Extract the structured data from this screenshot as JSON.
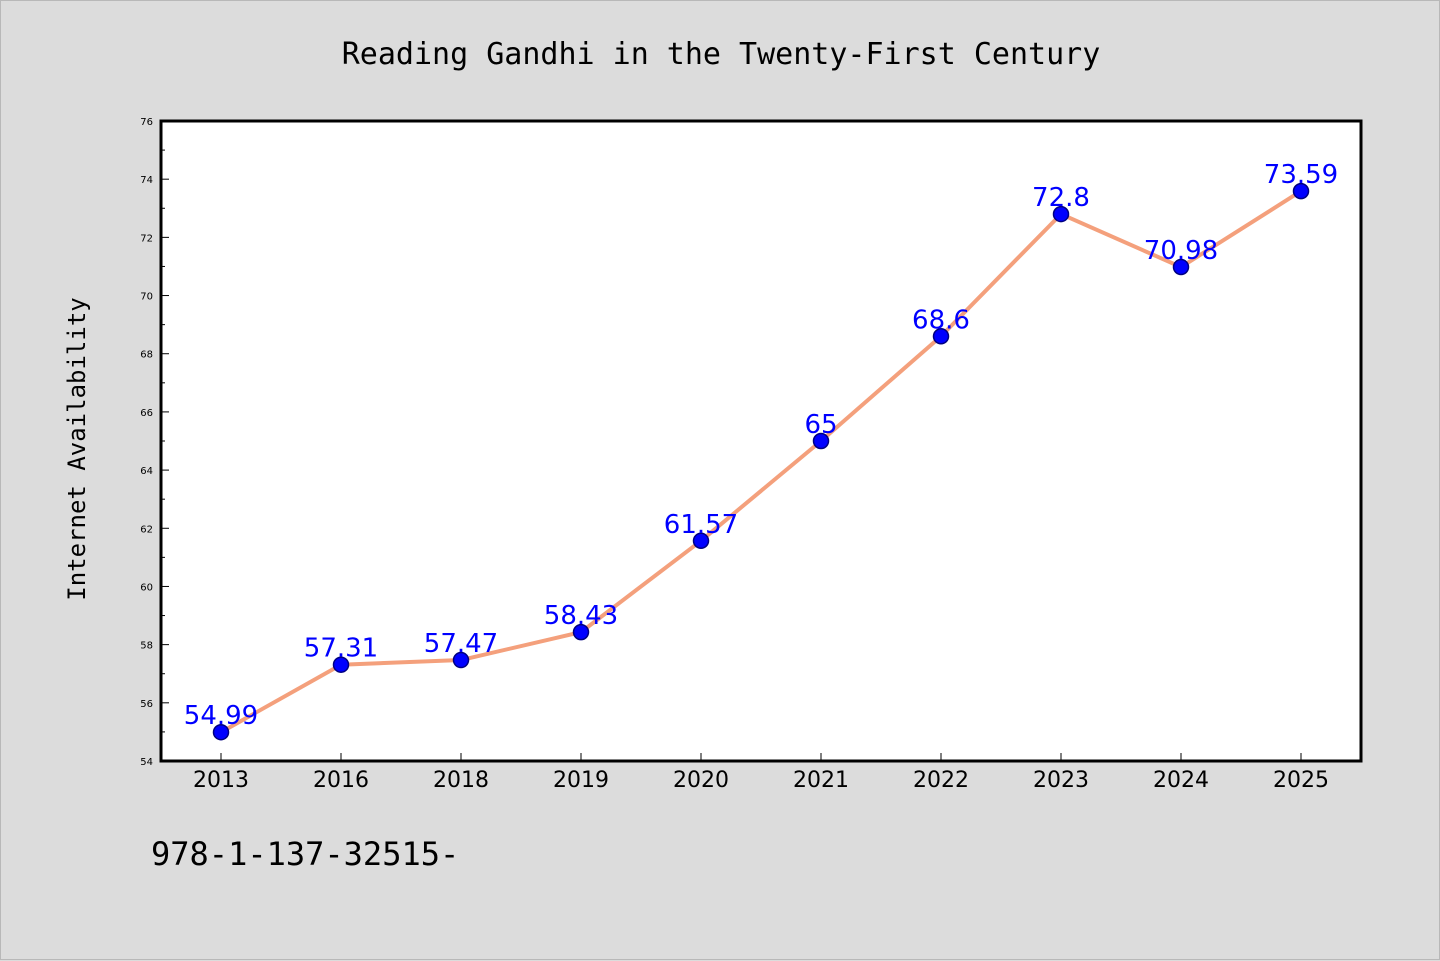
{
  "chart_data": {
    "type": "line",
    "title": "Reading Gandhi in the Twenty-First Century",
    "ylabel": "Internet Availability",
    "xlabel": "",
    "categories": [
      "2013",
      "2016",
      "2018",
      "2019",
      "2020",
      "2021",
      "2022",
      "2023",
      "2024",
      "2025"
    ],
    "series": [
      {
        "values": [
          54.99,
          57.31,
          57.47,
          58.43,
          61.57,
          65,
          68.6,
          72.8,
          70.98,
          73.59
        ],
        "data_labels": [
          "54.99",
          "57.31",
          "57.47",
          "58.43",
          "61.57",
          "65",
          "68.6",
          "72.8",
          "70.98",
          "73.59"
        ]
      }
    ],
    "ylim": [
      54,
      76
    ],
    "yticks": [
      54,
      56,
      58,
      60,
      62,
      64,
      66,
      68,
      70,
      72,
      74,
      76
    ],
    "grid": false,
    "legend": "none",
    "colors": {
      "line": "#f4a07c",
      "marker": "#0000ff",
      "marker_edge": "#000080",
      "label": "#0000ff",
      "background": "#dcdcdc",
      "plot_background": "#ffffff"
    }
  },
  "footer": {
    "text": "978-1-137-32515-"
  }
}
